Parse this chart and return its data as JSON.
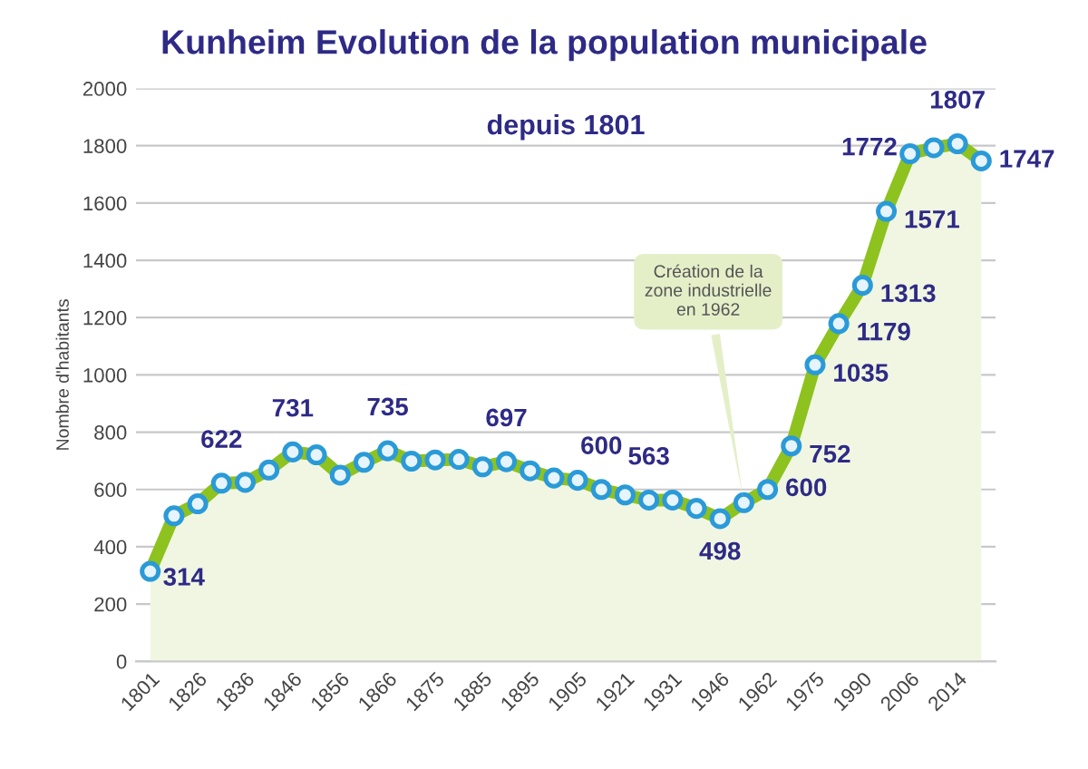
{
  "chart_data": {
    "type": "area",
    "title": "Kunheim Evolution de la population municipale",
    "subtitle": "depuis 1801",
    "ylabel": "Nombre d'habitants",
    "categories": [
      "1801",
      null,
      "1826",
      null,
      "1836",
      null,
      "1846",
      null,
      "1856",
      null,
      "1866",
      null,
      "1875",
      null,
      "1885",
      null,
      "1895",
      null,
      "1905",
      null,
      "1921",
      null,
      "1931",
      null,
      "1946",
      null,
      "1962",
      null,
      "1975",
      null,
      "1990",
      null,
      "2006",
      null,
      "2014",
      null
    ],
    "series": [
      {
        "color": "#8dc21f",
        "values": [
          314,
          508,
          550,
          622,
          625,
          668,
          731,
          721,
          650,
          695,
          735,
          699,
          703,
          705,
          679,
          697,
          665,
          640,
          632,
          600,
          581,
          563,
          563,
          534,
          498,
          554,
          600,
          752,
          1035,
          1179,
          1313,
          1571,
          1772,
          1793,
          1807,
          1747
        ],
        "value_labels": [
          "314",
          null,
          null,
          "622",
          null,
          null,
          "731",
          null,
          null,
          null,
          "735",
          null,
          null,
          null,
          null,
          "697",
          null,
          null,
          null,
          "600",
          null,
          "563",
          null,
          null,
          "498",
          null,
          "600",
          "752",
          "1035",
          "1179",
          "1313",
          "1571",
          "1772",
          null,
          "1807",
          "1747"
        ]
      }
    ],
    "ylim": [
      0,
      2000
    ],
    "yticks": [
      0,
      200,
      400,
      600,
      800,
      1000,
      1200,
      1400,
      1600,
      1800,
      2000
    ],
    "grid": "y",
    "marker": "circle",
    "legend": false,
    "annotations": [
      "Création de la\nzone industrielle\nen 1962"
    ]
  }
}
